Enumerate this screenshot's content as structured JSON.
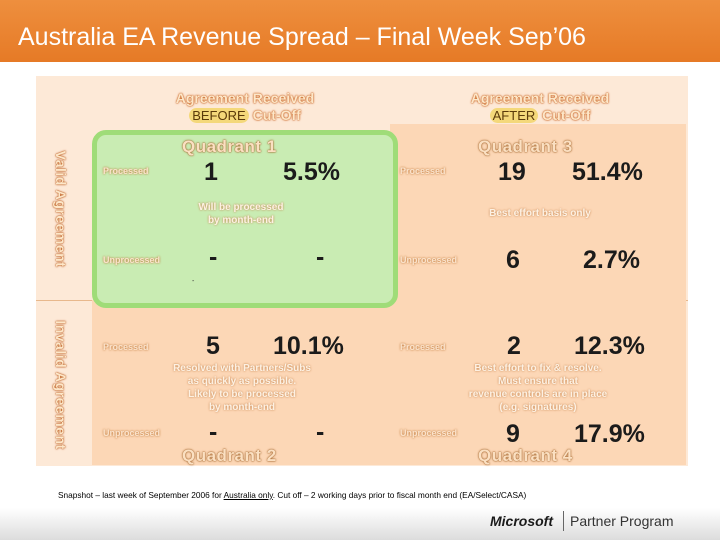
{
  "slide": {
    "title": "Australia EA Revenue Spread – Final Week Sep’06",
    "header_color": "#e8832f"
  },
  "columns": {
    "before": {
      "line1": "Agreement Received",
      "chip": "BEFORE",
      "rest": "Cut-Off"
    },
    "after": {
      "line1": "Agreement Received",
      "chip": "AFTER",
      "rest": "Cut-Off"
    }
  },
  "rows": {
    "valid": "Valid Agreement",
    "invalid": "Invalid Agreement"
  },
  "quadrants": {
    "q1": {
      "title": "Quadrant 1",
      "processed_label": "Processed",
      "processed_count": "1",
      "processed_pct": "5.5%",
      "note_l1": "Will be processed",
      "note_l2": "by month-end",
      "unprocessed_label": "Unprocessed",
      "unprocessed_count": "-",
      "unprocessed_pct": "-",
      "dot": "-"
    },
    "q2": {
      "title": "Quadrant 2",
      "processed_label": "Processed",
      "processed_count": "5",
      "processed_pct": "10.1%",
      "note_l1": "Resolved with Partners/Subs",
      "note_l2": "as quickly as possible.",
      "note_l3": "Likely to be processed",
      "note_l4": "by month-end",
      "unprocessed_label": "Unprocessed",
      "unprocessed_count": "-",
      "unprocessed_pct": "-"
    },
    "q3": {
      "title": "Quadrant 3",
      "processed_label": "Processed",
      "processed_count": "19",
      "processed_pct": "51.4%",
      "note_l1": "Best effort basis only",
      "unprocessed_label": "Unprocessed",
      "unprocessed_count": "6",
      "unprocessed_pct": "2.7%"
    },
    "q4": {
      "title": "Quadrant 4",
      "processed_label": "Processed",
      "processed_count": "2",
      "processed_pct": "12.3%",
      "note_l1": "Best effort to fix & resolve.",
      "note_l2": "Must ensure that",
      "note_l3": "revenue controls are in place",
      "note_l4": "(e.g. signatures)",
      "unprocessed_label": "Unprocessed",
      "unprocessed_count": "9",
      "unprocessed_pct": "17.9%"
    }
  },
  "footnote": {
    "pre": "Snapshot – last week of September 2006 for ",
    "underlined": "Australia only",
    "post": ".  Cut off – 2 working days prior to fiscal month end (EA/Select/CASA)"
  },
  "brand": {
    "logo_text": "Microsoft",
    "program": "Partner Program"
  }
}
